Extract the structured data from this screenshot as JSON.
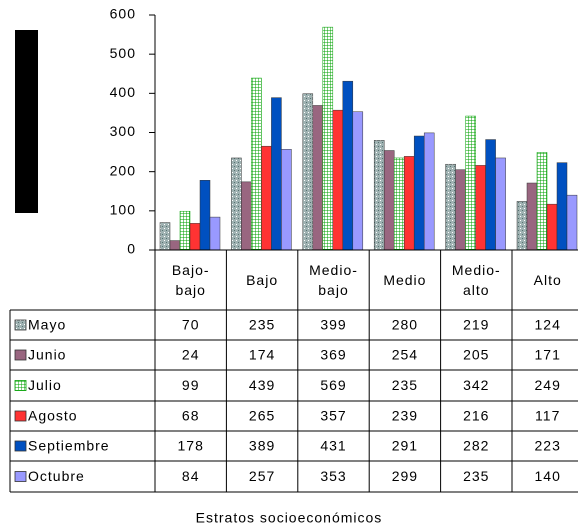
{
  "chart_data": {
    "type": "bar",
    "x_label": "Estratos socioeconómicos",
    "categories": [
      "Bajo-bajo",
      "Bajo",
      "Medio-bajo",
      "Medio",
      "Medio-alto",
      "Alto"
    ],
    "series": [
      {
        "name": "Mayo",
        "color": "#9fb2b2",
        "pattern": "speckle",
        "values": [
          70,
          235,
          399,
          280,
          219,
          124
        ]
      },
      {
        "name": "Junio",
        "color": "#996680",
        "values": [
          24,
          174,
          369,
          254,
          205,
          171
        ]
      },
      {
        "name": "Julio",
        "color": "#00a000",
        "pattern": "grid",
        "values": [
          99,
          439,
          569,
          235,
          342,
          249
        ]
      },
      {
        "name": "Agosto",
        "color": "#ff3333",
        "values": [
          68,
          265,
          357,
          239,
          216,
          117
        ]
      },
      {
        "name": "Septiembre",
        "color": "#0050c0",
        "values": [
          178,
          389,
          431,
          291,
          282,
          223
        ]
      },
      {
        "name": "Octubre",
        "color": "#9999ff",
        "values": [
          84,
          257,
          353,
          299,
          235,
          140
        ]
      }
    ],
    "ylim": [
      0,
      600
    ],
    "yticks": [
      0,
      100,
      200,
      300,
      400,
      500,
      600
    ],
    "data_table": true
  }
}
